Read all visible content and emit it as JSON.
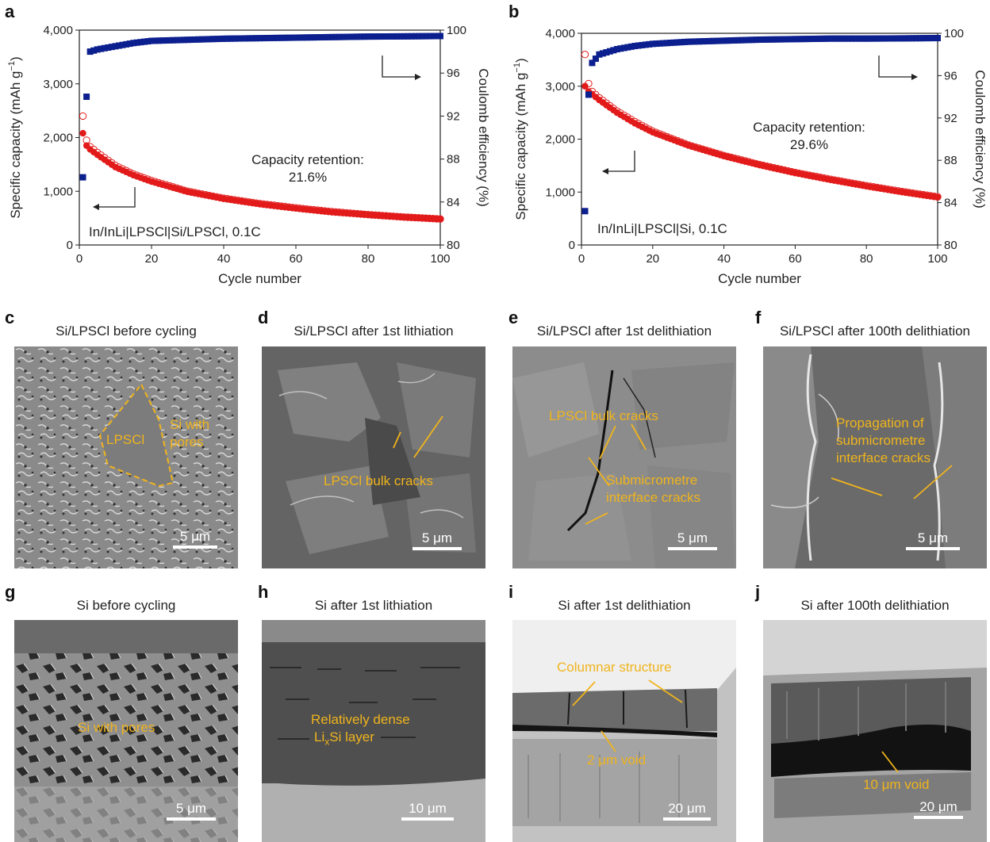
{
  "panels": {
    "a": {
      "letter": "a"
    },
    "b": {
      "letter": "b"
    },
    "c": {
      "letter": "c",
      "title": "Si/LPSCl before cycling",
      "annotations": [
        "LPSCl",
        "Si with",
        "pores"
      ],
      "scale": "5 μm"
    },
    "d": {
      "letter": "d",
      "title": "Si/LPSCl after 1st lithiation",
      "annotations": [
        "LPSCl bulk cracks"
      ],
      "scale": "5 μm"
    },
    "e": {
      "letter": "e",
      "title": "Si/LPSCl after 1st delithiation",
      "annotations": [
        "LPSCl bulk cracks",
        "Submicrometre",
        "interface cracks"
      ],
      "scale": "5 μm"
    },
    "f": {
      "letter": "f",
      "title": "Si/LPSCl after 100th delithiation",
      "annotations": [
        "Propagation of",
        "submicrometre",
        "interface cracks"
      ],
      "scale": "5 μm"
    },
    "g": {
      "letter": "g",
      "title": "Si before cycling",
      "annotations": [
        "Si with pores"
      ],
      "scale": "5 μm"
    },
    "h": {
      "letter": "h",
      "title": "Si after 1st lithiation",
      "annotations": [
        "Relatively dense",
        "Li",
        "x",
        "Si layer"
      ],
      "scale": "10 μm"
    },
    "i": {
      "letter": "i",
      "title": "Si after 1st delithiation",
      "annotations": [
        "Columnar structure",
        "2 μm void"
      ],
      "scale": "20 μm"
    },
    "j": {
      "letter": "j",
      "title": "Si after 100th delithiation",
      "annotations": [
        "10 μm void"
      ],
      "scale": "20 μm"
    }
  },
  "chart_data": [
    {
      "type": "scatter",
      "panel": "a",
      "xlabel": "Cycle number",
      "ylabel": "Specific capacity (mAh g",
      "ylabel_sup": "−1",
      "ylabel_end": ")",
      "y2label": "Coulomb efficiency (%)",
      "xlim": [
        0,
        100
      ],
      "ylim": [
        0,
        4000
      ],
      "y2lim": [
        80,
        100
      ],
      "xticks": [
        "0",
        "20",
        "40",
        "60",
        "80",
        "100"
      ],
      "yticks": [
        "0",
        "1,000",
        "2,000",
        "3,000",
        "4,000"
      ],
      "y2ticks": [
        "80",
        "84",
        "88",
        "92",
        "96",
        "100"
      ],
      "retention_label": "Capacity retention:",
      "retention_value": "21.6%",
      "cell_label": "In/InLi|LPSCl|Si/LPSCl, 0.1C",
      "series": [
        {
          "role": "charge",
          "color": "#e21a1a",
          "points": [
            [
              1,
              2080
            ],
            [
              2,
              1850
            ],
            [
              3,
              1780
            ],
            [
              5,
              1680
            ],
            [
              10,
              1450
            ],
            [
              15,
              1300
            ],
            [
              20,
              1180
            ],
            [
              30,
              990
            ],
            [
              40,
              860
            ],
            [
              50,
              760
            ],
            [
              60,
              680
            ],
            [
              70,
              610
            ],
            [
              80,
              560
            ],
            [
              90,
              515
            ],
            [
              100,
              480
            ]
          ]
        },
        {
          "role": "discharge",
          "color": "#e21a1a",
          "points": [
            [
              1,
              2400
            ],
            [
              2,
              1950
            ],
            [
              3,
              1830
            ],
            [
              5,
              1720
            ],
            [
              10,
              1480
            ],
            [
              15,
              1320
            ],
            [
              20,
              1200
            ],
            [
              30,
              1000
            ],
            [
              40,
              870
            ],
            [
              50,
              770
            ],
            [
              60,
              690
            ],
            [
              70,
              620
            ],
            [
              80,
              565
            ],
            [
              90,
              520
            ],
            [
              100,
              485
            ]
          ]
        },
        {
          "role": "ce",
          "color": "#0c1f8e",
          "points": [
            [
              1,
              86.3
            ],
            [
              2,
              93.8
            ],
            [
              3,
              98.0
            ],
            [
              5,
              98.2
            ],
            [
              10,
              98.5
            ],
            [
              15,
              98.8
            ],
            [
              20,
              99.0
            ],
            [
              30,
              99.1
            ],
            [
              40,
              99.2
            ],
            [
              50,
              99.25
            ],
            [
              60,
              99.3
            ],
            [
              70,
              99.35
            ],
            [
              80,
              99.4
            ],
            [
              90,
              99.42
            ],
            [
              100,
              99.45
            ]
          ]
        }
      ]
    },
    {
      "type": "scatter",
      "panel": "b",
      "xlabel": "Cycle number",
      "ylabel": "Specific capacity (mAh g",
      "ylabel_sup": "−1",
      "ylabel_end": ")",
      "y2label": "Coulomb efficiency (%)",
      "xlim": [
        0,
        100
      ],
      "ylim": [
        0,
        4000
      ],
      "y2lim": [
        80,
        100
      ],
      "xticks": [
        "0",
        "20",
        "40",
        "60",
        "80",
        "100"
      ],
      "yticks": [
        "0",
        "1,000",
        "2,000",
        "3,000",
        "4,000"
      ],
      "y2ticks": [
        "80",
        "84",
        "88",
        "92",
        "96",
        "100"
      ],
      "retention_label": "Capacity retention:",
      "retention_value": "29.6%",
      "cell_label": "In/InLi|LPSCl|Si, 0.1C",
      "series": [
        {
          "role": "charge",
          "color": "#e21a1a",
          "points": [
            [
              1,
              3000
            ],
            [
              2,
              2900
            ],
            [
              3,
              2850
            ],
            [
              5,
              2740
            ],
            [
              10,
              2500
            ],
            [
              15,
              2300
            ],
            [
              20,
              2130
            ],
            [
              30,
              1880
            ],
            [
              40,
              1680
            ],
            [
              50,
              1510
            ],
            [
              60,
              1360
            ],
            [
              70,
              1230
            ],
            [
              80,
              1110
            ],
            [
              90,
              1000
            ],
            [
              100,
              900
            ]
          ]
        },
        {
          "role": "discharge",
          "color": "#e21a1a",
          "points": [
            [
              1,
              3600
            ],
            [
              2,
              3050
            ],
            [
              3,
              2900
            ],
            [
              5,
              2780
            ],
            [
              10,
              2530
            ],
            [
              15,
              2330
            ],
            [
              20,
              2150
            ],
            [
              30,
              1890
            ],
            [
              40,
              1690
            ],
            [
              50,
              1520
            ],
            [
              60,
              1370
            ],
            [
              70,
              1240
            ],
            [
              80,
              1120
            ],
            [
              90,
              1010
            ],
            [
              100,
              910
            ]
          ]
        },
        {
          "role": "ce",
          "color": "#0c1f8e",
          "points": [
            [
              1,
              83.2
            ],
            [
              2,
              94.2
            ],
            [
              3,
              97.2
            ],
            [
              5,
              98.0
            ],
            [
              10,
              98.5
            ],
            [
              15,
              98.8
            ],
            [
              20,
              99.0
            ],
            [
              30,
              99.2
            ],
            [
              40,
              99.3
            ],
            [
              50,
              99.4
            ],
            [
              60,
              99.45
            ],
            [
              70,
              99.5
            ],
            [
              80,
              99.5
            ],
            [
              90,
              99.52
            ],
            [
              100,
              99.55
            ]
          ]
        }
      ]
    }
  ]
}
